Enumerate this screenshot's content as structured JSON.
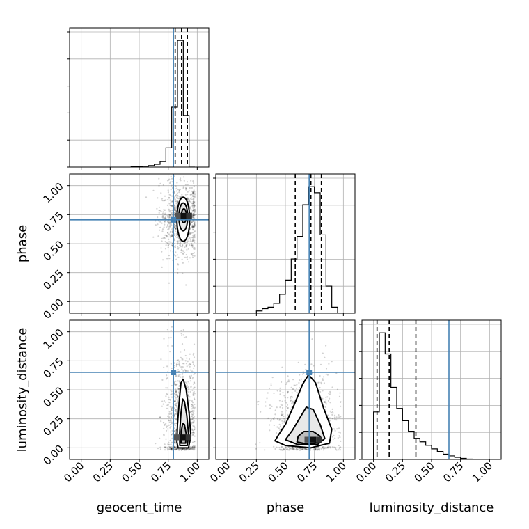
{
  "chart_data": {
    "type": "corner",
    "parameters": [
      "geocent_time",
      "phase",
      "luminosity_distance"
    ],
    "xlabels": [
      "geocent_time",
      "phase",
      "luminosity_distance"
    ],
    "ylabels": [
      "",
      "phase",
      "luminosity_distance"
    ],
    "axis_range": [
      -0.1,
      1.1
    ],
    "tick_values": [
      0.0,
      0.25,
      0.5,
      0.75,
      1.0
    ],
    "tick_labels": [
      "0.00",
      "0.25",
      "0.50",
      "0.75",
      "1.00"
    ],
    "grid": true,
    "truths": {
      "geocent_time": 0.795,
      "phase": 0.705,
      "luminosity_distance": 0.65
    },
    "truth_color": "#4682b4",
    "histograms": [
      {
        "parameter": "geocent_time",
        "bin_edges": [
          0.43,
          0.48,
          0.53,
          0.58,
          0.63,
          0.68,
          0.73,
          0.78,
          0.83,
          0.88,
          0.93,
          0.98
        ],
        "counts": [
          0.2,
          0.4,
          0.6,
          1.1,
          2.0,
          4.0,
          14.0,
          43.5,
          92.0,
          37.5,
          0
        ],
        "quantiles": [
          0.81,
          0.865,
          0.915
        ]
      },
      {
        "parameter": "phase",
        "bin_edges": [
          -0.05,
          0.0,
          0.05,
          0.1,
          0.15,
          0.2,
          0.25,
          0.3,
          0.35,
          0.4,
          0.45,
          0.5,
          0.55,
          0.6,
          0.65,
          0.7,
          0.75,
          0.8,
          0.85,
          0.9,
          0.95,
          1.0
        ],
        "counts": [
          0,
          0,
          0,
          0,
          0,
          0,
          1.5,
          3,
          4,
          6.5,
          12.5,
          22,
          36,
          51,
          72,
          84,
          80,
          52,
          18,
          4,
          0
        ],
        "quantiles": [
          0.585,
          0.72,
          0.81
        ]
      },
      {
        "parameter": "luminosity_distance",
        "bin_edges": [
          -0.05,
          0.0,
          0.05,
          0.1,
          0.15,
          0.2,
          0.25,
          0.3,
          0.35,
          0.4,
          0.45,
          0.5,
          0.55,
          0.6,
          0.65,
          0.7,
          0.75,
          0.8,
          0.85,
          0.9,
          0.95,
          1.0
        ],
        "counts": [
          0,
          27,
          72,
          60,
          41,
          29,
          22,
          16,
          12,
          10,
          8,
          6,
          4.5,
          3,
          2,
          1.2,
          0.6,
          0.2,
          0,
          0,
          0
        ],
        "quantiles": [
          0.03,
          0.135,
          0.365
        ]
      }
    ],
    "contours_2d": [
      {
        "x_param": "geocent_time",
        "y_param": "phase",
        "scatter_center": [
          0.86,
          0.7
        ],
        "scatter_spread": [
          0.09,
          0.16
        ],
        "density_peak": [
          0.88,
          0.74
        ],
        "contour_levels": [
          {
            "cx": 0.88,
            "cy": 0.71,
            "rx": 0.055,
            "ry": 0.19
          },
          {
            "cx": 0.88,
            "cy": 0.73,
            "rx": 0.038,
            "ry": 0.12
          },
          {
            "cx": 0.885,
            "cy": 0.74,
            "rx": 0.022,
            "ry": 0.06
          }
        ]
      },
      {
        "x_param": "geocent_time",
        "y_param": "luminosity_distance",
        "scatter_center": [
          0.86,
          0.25
        ],
        "scatter_spread": [
          0.07,
          0.28
        ],
        "density_peak": [
          0.875,
          0.09
        ],
        "contour_levels": [
          {
            "points": [
              [
                0.835,
                0.0
              ],
              [
                0.925,
                0.0
              ],
              [
                0.945,
                0.1
              ],
              [
                0.93,
                0.3
              ],
              [
                0.905,
                0.5
              ],
              [
                0.88,
                0.59
              ],
              [
                0.86,
                0.56
              ],
              [
                0.845,
                0.4
              ],
              [
                0.83,
                0.2
              ],
              [
                0.825,
                0.05
              ]
            ]
          },
          {
            "points": [
              [
                0.85,
                0.02
              ],
              [
                0.915,
                0.02
              ],
              [
                0.925,
                0.12
              ],
              [
                0.91,
                0.28
              ],
              [
                0.89,
                0.4
              ],
              [
                0.875,
                0.42
              ],
              [
                0.86,
                0.3
              ],
              [
                0.848,
                0.12
              ]
            ]
          },
          {
            "points": [
              [
                0.86,
                0.04
              ],
              [
                0.9,
                0.04
              ],
              [
                0.905,
                0.12
              ],
              [
                0.89,
                0.2
              ],
              [
                0.875,
                0.21
              ],
              [
                0.862,
                0.14
              ]
            ]
          }
        ]
      },
      {
        "x_param": "phase",
        "y_param": "luminosity_distance",
        "scatter_center": [
          0.68,
          0.22
        ],
        "scatter_spread": [
          0.14,
          0.2
        ],
        "density_peak": [
          0.74,
          0.07
        ],
        "contour_levels": [
          {
            "points": [
              [
                0.41,
                0.06
              ],
              [
                0.5,
                0.02
              ],
              [
                0.72,
                0.0
              ],
              [
                0.88,
                0.04
              ],
              [
                0.9,
                0.16
              ],
              [
                0.83,
                0.34
              ],
              [
                0.76,
                0.56
              ],
              [
                0.7,
                0.63
              ],
              [
                0.65,
                0.55
              ],
              [
                0.58,
                0.38
              ],
              [
                0.5,
                0.2
              ],
              [
                0.44,
                0.11
              ]
            ]
          },
          {
            "points": [
              [
                0.5,
                0.07
              ],
              [
                0.6,
                0.03
              ],
              [
                0.78,
                0.03
              ],
              [
                0.84,
                0.08
              ],
              [
                0.8,
                0.2
              ],
              [
                0.74,
                0.33
              ],
              [
                0.68,
                0.35
              ],
              [
                0.62,
                0.25
              ],
              [
                0.56,
                0.15
              ]
            ]
          },
          {
            "points": [
              [
                0.6,
                0.05
              ],
              [
                0.7,
                0.03
              ],
              [
                0.8,
                0.05
              ],
              [
                0.8,
                0.1
              ],
              [
                0.74,
                0.14
              ],
              [
                0.66,
                0.14
              ],
              [
                0.61,
                0.1
              ]
            ]
          }
        ]
      }
    ]
  }
}
